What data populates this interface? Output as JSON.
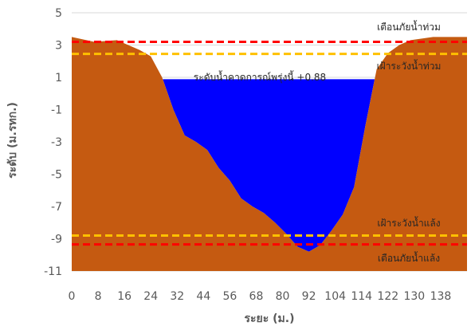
{
  "chart_data": {
    "type": "area",
    "xlabel": "ระยะ (ม.)",
    "ylabel": "ระดับ (ม.รทก.)",
    "ylim": [
      -11,
      5
    ],
    "y_ticks": [
      "5",
      "3",
      "1",
      "-1",
      "-3",
      "-5",
      "-7",
      "-9",
      "-11"
    ],
    "x_ticks": [
      "0",
      "8",
      "16",
      "24",
      "32",
      "44",
      "56",
      "68",
      "80",
      "92",
      "104",
      "114",
      "122",
      "130",
      "138"
    ],
    "grid": "horizontal",
    "colors": {
      "ground": "#c55a11",
      "water": "#0000ff",
      "warning": "#ff0000",
      "watch": "#ffc000",
      "grid": "#d9d9d9",
      "ink": "#595959"
    },
    "ground_profile": {
      "x": [
        0,
        8,
        16,
        24,
        28,
        32,
        36,
        40,
        44,
        48,
        52,
        56,
        60,
        64,
        68,
        72,
        76,
        80,
        84,
        88,
        92,
        96,
        100,
        104,
        108,
        112,
        116,
        120,
        124,
        128,
        132,
        136,
        140
      ],
      "y": [
        3.5,
        3.2,
        3.3,
        2.7,
        2.3,
        1.0,
        -1.0,
        -2.6,
        -3.0,
        -3.5,
        -4.6,
        -5.4,
        -6.5,
        -7.0,
        -7.4,
        -8.0,
        -8.7,
        -9.5,
        -9.8,
        -9.4,
        -8.5,
        -7.5,
        -5.8,
        -2.0,
        1.5,
        2.5,
        3.0,
        3.3,
        3.4,
        3.5,
        3.5,
        3.5,
        3.5
      ]
    },
    "water_level": {
      "label": "ระดับน้ำคาดการณ์พรุ่งนี้ +0.88",
      "value": 0.88
    },
    "reference_lines": [
      {
        "label": "เตือนภัยน้ำท่วม",
        "value": 3.2,
        "color": "#ff0000"
      },
      {
        "label": "เฝ้าระวังน้ำท่วม",
        "value": 2.45,
        "color": "#ffc000"
      },
      {
        "label": "เฝ้าระวังน้ำแล้ง",
        "value": -8.8,
        "color": "#ffc000"
      },
      {
        "label": "เตือนภัยน้ำแล้ง",
        "value": -9.35,
        "color": "#ff0000"
      }
    ]
  }
}
